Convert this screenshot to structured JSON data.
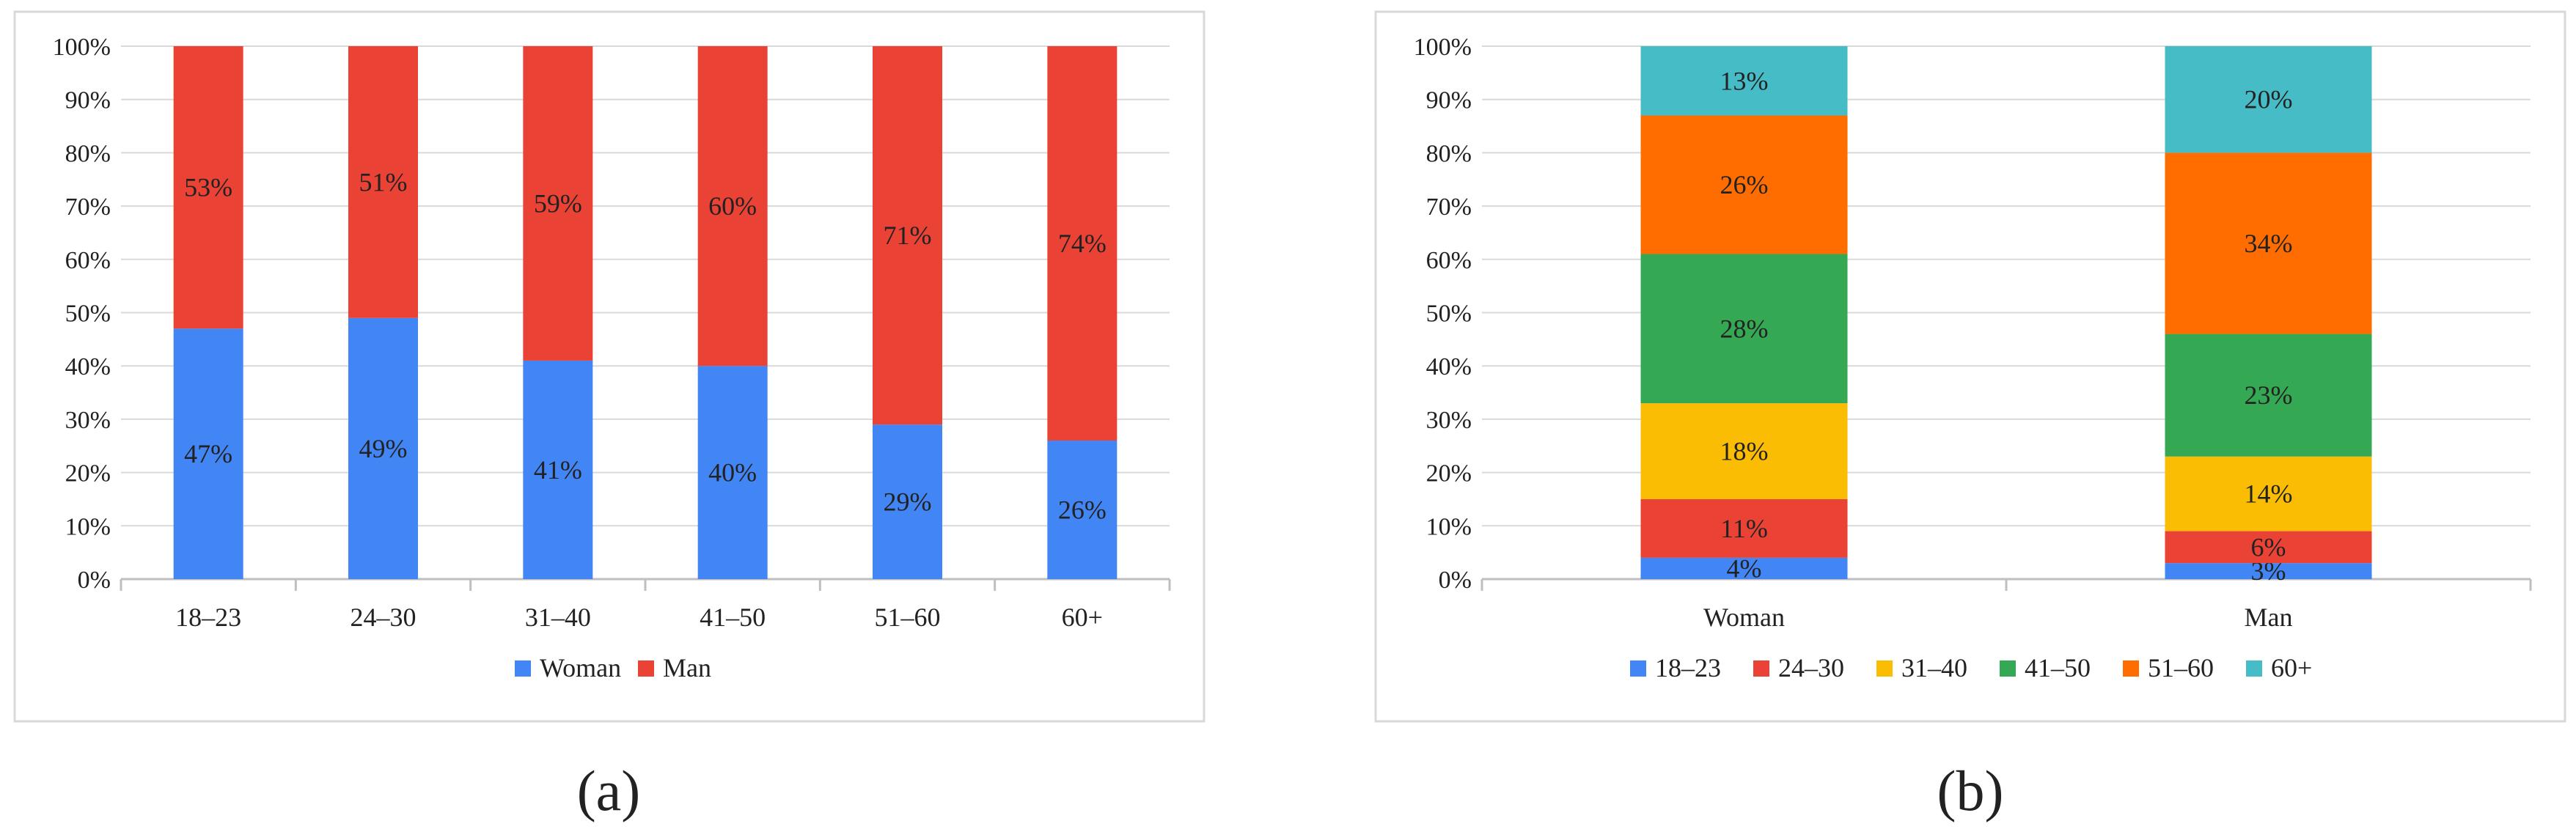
{
  "chart_data": [
    {
      "type": "bar",
      "stacked": true,
      "title": "",
      "xlabel": "",
      "ylabel": "",
      "ylim": [
        0,
        100
      ],
      "yticks": [
        "0%",
        "10%",
        "20%",
        "30%",
        "40%",
        "50%",
        "60%",
        "70%",
        "80%",
        "90%",
        "100%"
      ],
      "categories": [
        "18–23",
        "24–30",
        "31–40",
        "41–50",
        "51–60",
        "60+"
      ],
      "series": [
        {
          "name": "Woman",
          "color": "#4285f4",
          "values": [
            47,
            49,
            41,
            40,
            29,
            26
          ],
          "labels": [
            "47%",
            "49%",
            "41%",
            "40%",
            "29%",
            "26%"
          ]
        },
        {
          "name": "Man",
          "color": "#ea4335",
          "values": [
            53,
            51,
            59,
            60,
            71,
            74
          ],
          "labels": [
            "53%",
            "51%",
            "59%",
            "60%",
            "71%",
            "74%"
          ]
        }
      ],
      "legend": "bottom",
      "panel_label": "a"
    },
    {
      "type": "bar",
      "stacked": true,
      "title": "",
      "xlabel": "",
      "ylabel": "",
      "ylim": [
        0,
        100
      ],
      "yticks": [
        "0%",
        "10%",
        "20%",
        "30%",
        "40%",
        "50%",
        "60%",
        "70%",
        "80%",
        "90%",
        "100%"
      ],
      "categories": [
        "Woman",
        "Man"
      ],
      "series": [
        {
          "name": "18–23",
          "color": "#4285f4",
          "values": [
            4,
            3
          ],
          "labels": [
            "4%",
            "3%"
          ]
        },
        {
          "name": "24–30",
          "color": "#ea4335",
          "values": [
            11,
            6
          ],
          "labels": [
            "11%",
            "6%"
          ]
        },
        {
          "name": "31–40",
          "color": "#fbbc04",
          "values": [
            18,
            14
          ],
          "labels": [
            "18%",
            "14%"
          ]
        },
        {
          "name": "41–50",
          "color": "#34a853",
          "values": [
            28,
            23
          ],
          "labels": [
            "28%",
            "23%"
          ]
        },
        {
          "name": "51–60",
          "color": "#ff6d01",
          "values": [
            26,
            34
          ],
          "labels": [
            "26%",
            "34%"
          ]
        },
        {
          "name": "60+",
          "color": "#46bdc6",
          "values": [
            13,
            20
          ],
          "labels": [
            "13%",
            "20%"
          ]
        }
      ],
      "legend": "bottom",
      "panel_label": "b"
    }
  ]
}
